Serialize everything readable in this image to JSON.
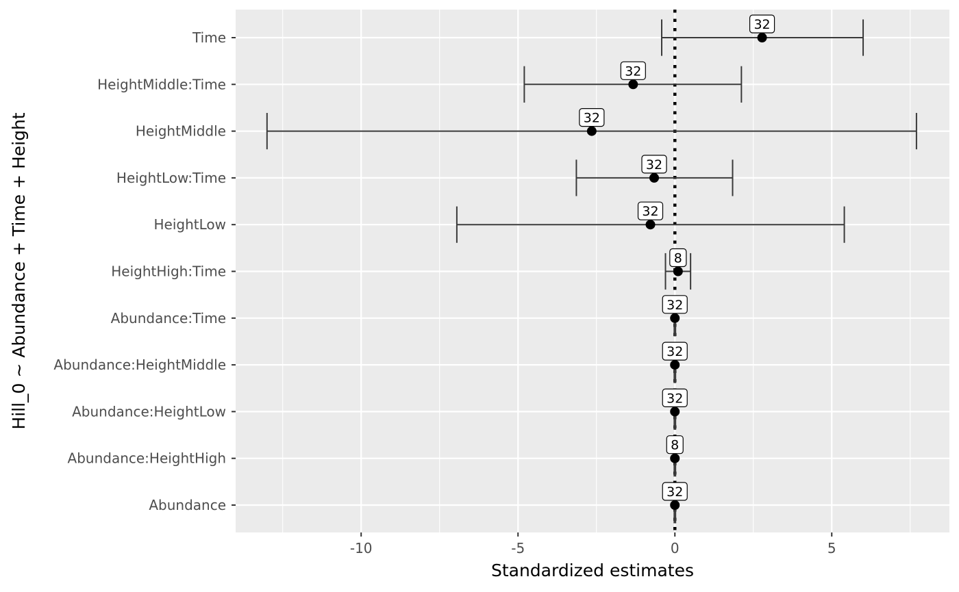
{
  "chart_data": {
    "type": "forest",
    "title": "",
    "xlabel": "Standardized estimates",
    "ylabel": "Hill_0 ~ Abundance + Time + Height",
    "xlim": [
      -14.0,
      8.75
    ],
    "x_ticks": [
      -10,
      -5,
      0,
      5
    ],
    "x_tick_labels": [
      "-10",
      "-5",
      "0",
      "5"
    ],
    "reference_line": 0,
    "terms": [
      {
        "term": "Time",
        "estimate": 2.78,
        "ci_low": -0.42,
        "ci_high": 6.0,
        "n": "32"
      },
      {
        "term": "HeightMiddle:Time",
        "estimate": -1.33,
        "ci_low": -4.8,
        "ci_high": 2.12,
        "n": "32"
      },
      {
        "term": "HeightMiddle",
        "estimate": -2.65,
        "ci_low": -13.0,
        "ci_high": 7.7,
        "n": "32"
      },
      {
        "term": "HeightLow:Time",
        "estimate": -0.66,
        "ci_low": -3.14,
        "ci_high": 1.84,
        "n": "32"
      },
      {
        "term": "HeightLow",
        "estimate": -0.78,
        "ci_low": -6.95,
        "ci_high": 5.4,
        "n": "32"
      },
      {
        "term": "HeightHigh:Time",
        "estimate": 0.1,
        "ci_low": -0.3,
        "ci_high": 0.5,
        "n": "8"
      },
      {
        "term": "Abundance:Time",
        "estimate": 0.0,
        "ci_low": -0.02,
        "ci_high": 0.02,
        "n": "32"
      },
      {
        "term": "Abundance:HeightMiddle",
        "estimate": 0.0,
        "ci_low": -0.02,
        "ci_high": 0.02,
        "n": "32"
      },
      {
        "term": "Abundance:HeightLow",
        "estimate": 0.0,
        "ci_low": -0.02,
        "ci_high": 0.02,
        "n": "32"
      },
      {
        "term": "Abundance:HeightHigh",
        "estimate": 0.0,
        "ci_low": -0.02,
        "ci_high": 0.02,
        "n": "8"
      },
      {
        "term": "Abundance",
        "estimate": 0.0,
        "ci_low": -0.02,
        "ci_high": 0.02,
        "n": "32"
      }
    ],
    "colors": {
      "panel_bg": "#ebebeb",
      "grid": "#ffffff",
      "errorbar": "#3a3a3a",
      "point": "#000000",
      "reference_line": "#000000",
      "label_bg": "#ffffff"
    }
  }
}
